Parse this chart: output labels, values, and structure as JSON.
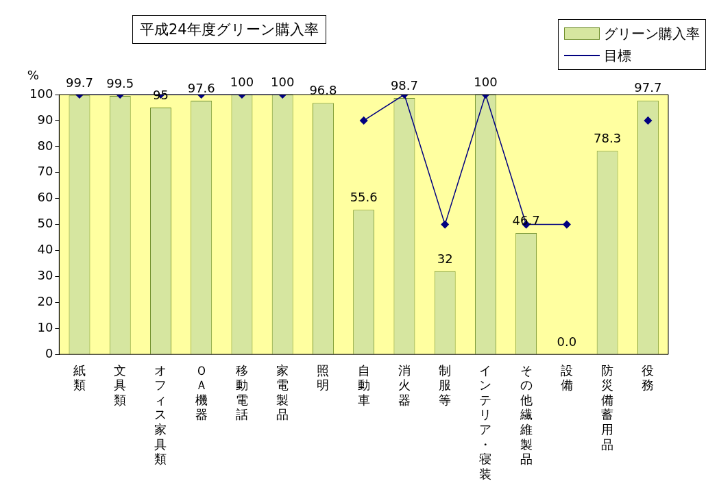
{
  "chart_data": {
    "type": "bar",
    "title": "平成24年度グリーン購入率",
    "ylabel": "%",
    "categories": [
      "紙類",
      "文具類",
      "オフィス家具類",
      "ＯＡ機器",
      "移動電話",
      "家電製品",
      "照明",
      "自動車",
      "消火器",
      "制服等",
      "インテリア・寝装",
      "その他繊維製品",
      "設備",
      "防災備蓄用品",
      "役務"
    ],
    "series": [
      {
        "name": "グリーン購入率",
        "color": "#d6e6a0",
        "values": [
          99.7,
          99.5,
          95,
          97.6,
          100,
          100,
          96.8,
          55.6,
          98.7,
          32,
          100,
          46.7,
          0,
          78.3,
          97.7
        ],
        "value_labels": [
          "99.7",
          "99.5",
          "95",
          "97.6",
          "100",
          "100",
          "96.8",
          "55.6",
          "98.7",
          "32",
          "100",
          "46.7",
          "0.0",
          "78.3",
          "97.7"
        ]
      },
      {
        "name": "目標",
        "type": "line",
        "color": "#000080",
        "marker": "diamond",
        "values": [
          100,
          100,
          100,
          100,
          100,
          100,
          null,
          90,
          100,
          50,
          100,
          50,
          50,
          null,
          90
        ]
      }
    ],
    "ylim": [
      0,
      100
    ],
    "yticks": [
      0,
      10,
      20,
      30,
      40,
      50,
      60,
      70,
      80,
      90,
      100
    ],
    "grid": false,
    "legend": "top right"
  }
}
